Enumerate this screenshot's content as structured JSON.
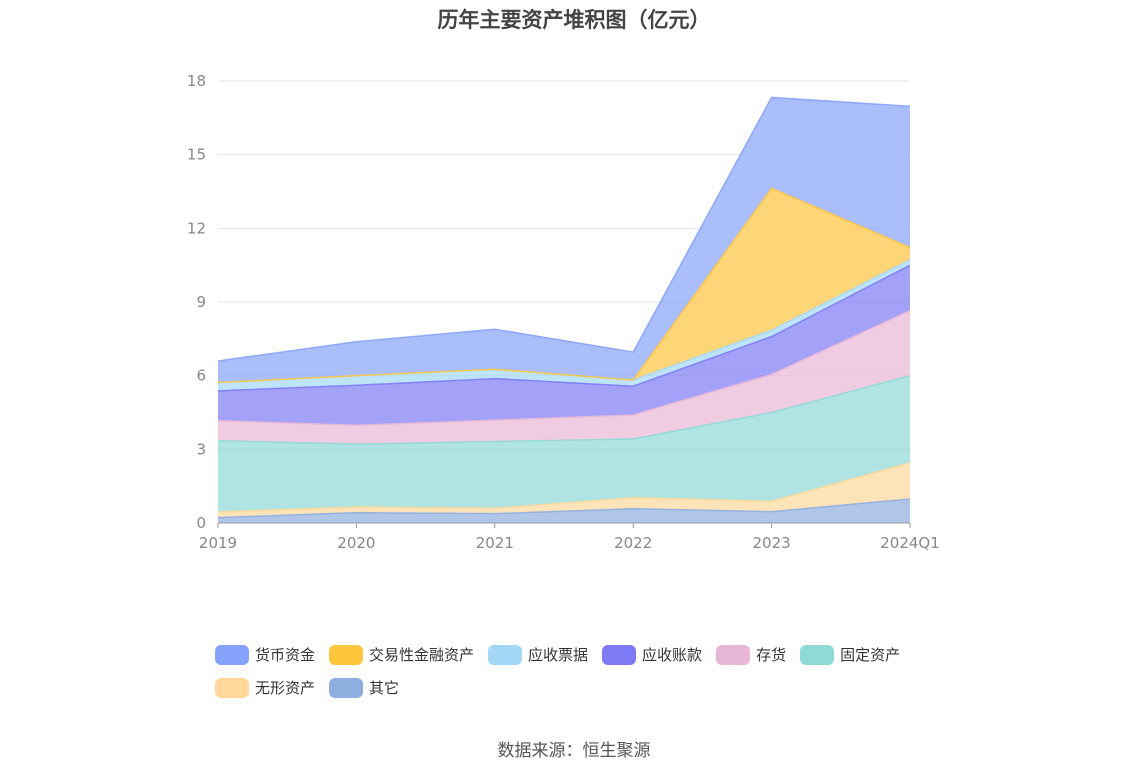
{
  "chart_data": {
    "type": "area",
    "stacked": true,
    "title": "历年主要资产堆积图（亿元）",
    "categories": [
      "2019",
      "2020",
      "2021",
      "2022",
      "2023",
      "2024Q1"
    ],
    "ylim": [
      0,
      18
    ],
    "yticks": [
      0,
      3,
      6,
      9,
      12,
      15,
      18
    ],
    "grid": true,
    "legend_position": "bottom",
    "series": [
      {
        "name": "其它",
        "color": "#8eaee0",
        "values": [
          0.22,
          0.42,
          0.38,
          0.58,
          0.46,
          0.98
        ]
      },
      {
        "name": "无形资产",
        "color": "#fdd89a",
        "values": [
          0.23,
          0.23,
          0.22,
          0.45,
          0.42,
          1.47
        ]
      },
      {
        "name": "固定资产",
        "color": "#8fd9d6",
        "values": [
          2.9,
          2.56,
          2.72,
          2.39,
          3.62,
          3.55
        ]
      },
      {
        "name": "存货",
        "color": "#e9b7d6",
        "values": [
          0.82,
          0.77,
          0.87,
          0.98,
          1.55,
          2.65
        ]
      },
      {
        "name": "应收账款",
        "color": "#7c7bf5",
        "values": [
          1.21,
          1.63,
          1.69,
          1.17,
          1.54,
          1.85
        ]
      },
      {
        "name": "应收票据",
        "color": "#a3d8f7",
        "values": [
          0.34,
          0.39,
          0.38,
          0.25,
          0.26,
          0.22
        ]
      },
      {
        "name": "交易性金融资产",
        "color": "#ffc53d",
        "values": [
          0,
          0,
          0,
          0,
          5.78,
          0.5
        ]
      },
      {
        "name": "货币资金",
        "color": "#86a3fb",
        "values": [
          0.88,
          1.38,
          1.63,
          1.14,
          3.7,
          5.75
        ]
      }
    ]
  },
  "legend": [
    {
      "name": "货币资金",
      "color": "#86a3fb"
    },
    {
      "name": "交易性金融资产",
      "color": "#ffc53d"
    },
    {
      "name": "应收票据",
      "color": "#a3d8f7"
    },
    {
      "name": "应收账款",
      "color": "#7c7bf5"
    },
    {
      "name": "存货",
      "color": "#e9b7d6"
    },
    {
      "name": "固定资产",
      "color": "#8fd9d6"
    },
    {
      "name": "无形资产",
      "color": "#fdd89a"
    },
    {
      "name": "其它",
      "color": "#8eaee0"
    }
  ],
  "source": "数据来源：恒生聚源"
}
